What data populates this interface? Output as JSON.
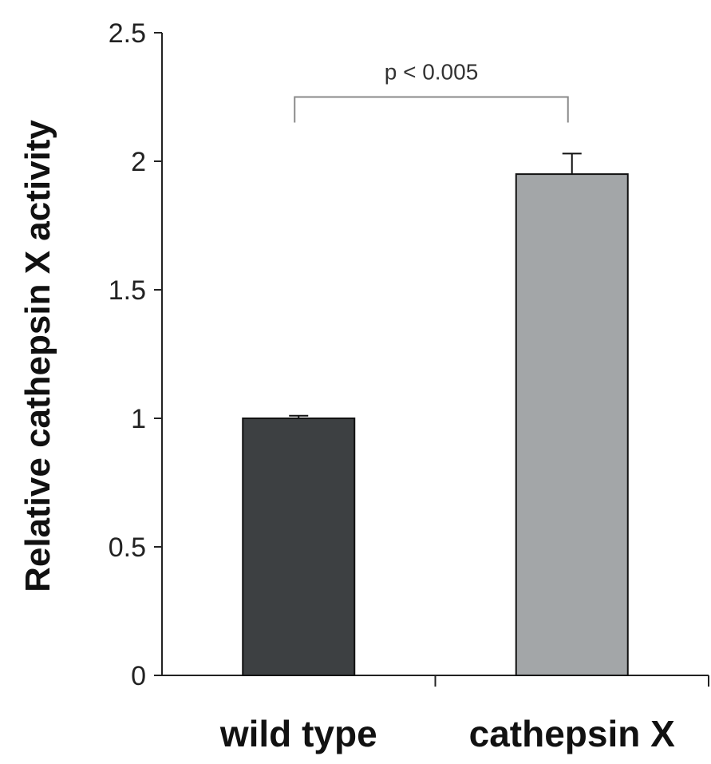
{
  "chart_data": {
    "type": "bar",
    "title": "",
    "xlabel": "",
    "ylabel": "Relative cathepsin X activity",
    "categories": [
      "wild type",
      "cathepsin X"
    ],
    "values": [
      1.0,
      1.95
    ],
    "errors": [
      0.01,
      0.08
    ],
    "ylim": [
      0,
      2.5
    ],
    "yticks": [
      0,
      0.5,
      1,
      1.5,
      2,
      2.5
    ],
    "ytick_labels": [
      "0",
      "0.5",
      "1",
      "1.5",
      "2",
      "2.5"
    ],
    "grid": false,
    "legend": "none",
    "bar_colors": [
      "#3d4042",
      "#a3a6a8"
    ],
    "annotation": {
      "text": "p < 0.005",
      "between": [
        "wild type",
        "cathepsin X"
      ],
      "bracket_level": 2.25
    }
  }
}
